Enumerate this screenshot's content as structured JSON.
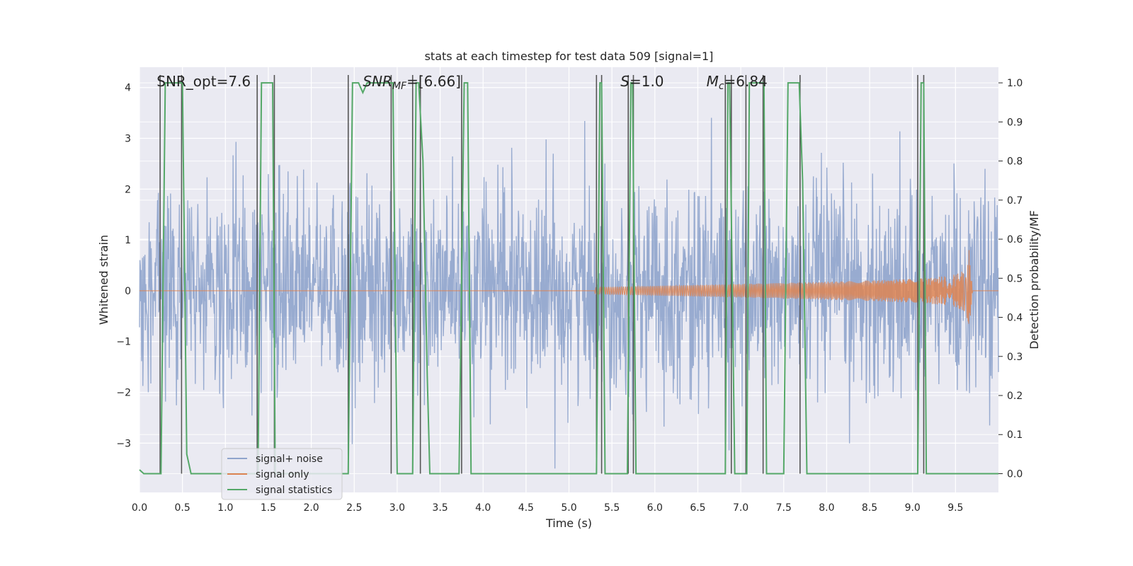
{
  "chart_data": {
    "type": "line",
    "title": "stats at each timestep for test data 509 [signal=1]",
    "xlabel": "Time (s)",
    "ylabel": "Whitened strain",
    "y2label": "Detection probability/MF",
    "xlim": [
      0,
      10
    ],
    "ylim": [
      -3.97,
      4.4
    ],
    "y2lim": [
      -0.048,
      1.04
    ],
    "x_ticks": [
      0.0,
      0.5,
      1.0,
      1.5,
      2.0,
      2.5,
      3.0,
      3.5,
      4.0,
      4.5,
      5.0,
      5.5,
      6.0,
      6.5,
      7.0,
      7.5,
      8.0,
      8.5,
      9.0,
      9.5
    ],
    "x_tick_labels": [
      "0.0",
      "0.5",
      "1.0",
      "1.5",
      "2.0",
      "2.5",
      "3.0",
      "3.5",
      "4.0",
      "4.5",
      "5.0",
      "5.5",
      "6.0",
      "6.5",
      "7.0",
      "7.5",
      "8.0",
      "8.5",
      "9.0",
      "9.5"
    ],
    "y_ticks": [
      -3,
      -2,
      -1,
      0,
      1,
      2,
      3,
      4
    ],
    "y_tick_labels": [
      "−3",
      "−2",
      "−1",
      "0",
      "1",
      "2",
      "3",
      "4"
    ],
    "y2_ticks": [
      0.0,
      0.1,
      0.2,
      0.3,
      0.4,
      0.5,
      0.6,
      0.7,
      0.8,
      0.9,
      1.0
    ],
    "y2_tick_labels": [
      "0.0",
      "0.1",
      "0.2",
      "0.3",
      "0.4",
      "0.5",
      "0.6",
      "0.7",
      "0.8",
      "0.9",
      "1.0"
    ],
    "grid": true,
    "legend_position": "lower-left",
    "colors": {
      "background": "#eaeaf2",
      "grid": "#ffffff",
      "noise": "#8fa4cc",
      "signal": "#dd8452",
      "statistics": "#55a868",
      "vlines": "#555555"
    },
    "annotations": [
      {
        "x": 0.2,
        "text": "SNR_opt=7.6",
        "italic": false
      },
      {
        "x": 2.6,
        "text": "SNR_MF=[6.66]",
        "italic": true,
        "sub": "MF",
        "main": "SNR",
        "rest": "=[6.66]"
      },
      {
        "x": 5.6,
        "text": "S=1.0",
        "italic": true,
        "main": "S",
        "sub": "",
        "rest": "=1.0"
      },
      {
        "x": 6.6,
        "text": "M_c=6.84",
        "italic": true,
        "main": "M",
        "sub": "c",
        "rest": "=6.84"
      }
    ],
    "series": [
      {
        "name": "signal+ noise",
        "kind": "noise",
        "samples": 2048,
        "amplitude_std": 1.0,
        "t_range": [
          0,
          10
        ]
      },
      {
        "name": "signal only",
        "kind": "chirp",
        "t_start": 5.3,
        "t_merger": 9.65,
        "peak_amplitude": 0.85,
        "ringdown_min": -0.95
      },
      {
        "name": "signal statistics",
        "kind": "statistics",
        "x": [
          0.0,
          0.05,
          0.1,
          0.25,
          0.3,
          0.5,
          0.55,
          0.6,
          0.62,
          1.38,
          1.42,
          1.55,
          1.58,
          1.62,
          2.43,
          2.48,
          2.55,
          2.6,
          2.65,
          2.95,
          3.0,
          3.18,
          3.22,
          3.25,
          3.3,
          3.35,
          3.38,
          3.4,
          3.72,
          3.78,
          3.82,
          3.86,
          5.32,
          5.36,
          5.38,
          5.42,
          5.68,
          5.72,
          5.74,
          5.78,
          6.82,
          6.85,
          6.87,
          6.93,
          7.07,
          7.1,
          7.27,
          7.3,
          7.5,
          7.55,
          7.68,
          7.72,
          7.77,
          7.82,
          9.06,
          9.1,
          9.13,
          9.16,
          10.0
        ],
        "y": [
          0.01,
          0.0,
          0.0,
          0.0,
          1.0,
          1.0,
          0.05,
          0.0,
          0.0,
          0.0,
          1.0,
          1.0,
          0.0,
          0.0,
          0.0,
          1.0,
          1.0,
          0.975,
          1.0,
          1.0,
          0.0,
          0.0,
          1.0,
          1.0,
          0.8,
          0.25,
          0.0,
          0.0,
          0.0,
          1.0,
          1.0,
          0.0,
          0.0,
          1.0,
          1.0,
          0.0,
          0.0,
          1.0,
          1.0,
          0.0,
          0.0,
          1.0,
          1.0,
          0.0,
          0.0,
          1.0,
          1.0,
          0.0,
          0.0,
          1.0,
          1.0,
          0.75,
          0.0,
          0.0,
          0.0,
          1.0,
          1.0,
          0.0,
          0.0
        ]
      }
    ],
    "vlines": [
      0.24,
      0.49,
      1.37,
      1.57,
      2.43,
      2.93,
      3.18,
      3.27,
      3.75,
      5.32,
      5.38,
      5.69,
      5.75,
      6.82,
      6.89,
      7.06,
      7.26,
      7.69,
      9.06,
      9.13
    ]
  },
  "legend": {
    "items": [
      "signal+ noise",
      "signal only",
      "signal statistics"
    ]
  }
}
